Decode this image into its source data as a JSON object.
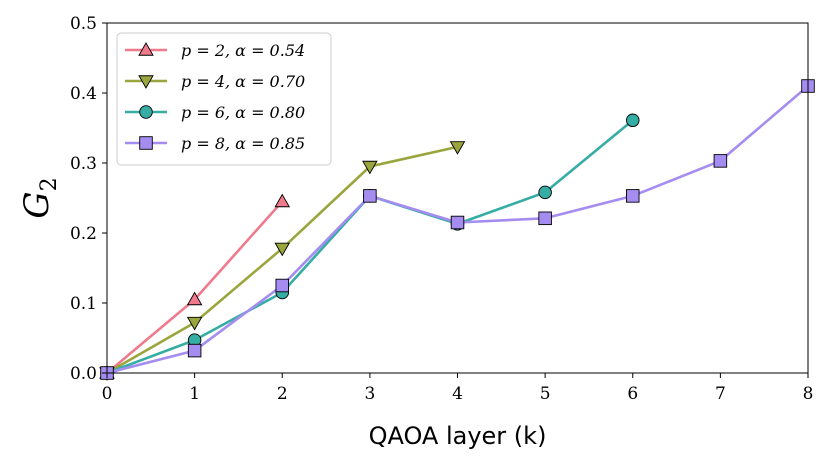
{
  "chart_data": {
    "type": "line",
    "title": "",
    "xlabel": "QAOA layer (k)",
    "ylabel": "G2",
    "xlim": [
      0,
      8
    ],
    "ylim": [
      0,
      0.5
    ],
    "xticks": [
      0,
      1,
      2,
      3,
      4,
      5,
      6,
      7,
      8
    ],
    "yticks": [
      0.0,
      0.1,
      0.2,
      0.3,
      0.4,
      0.5
    ],
    "xtick_labels": [
      "0",
      "1",
      "2",
      "3",
      "4",
      "5",
      "6",
      "7",
      "8"
    ],
    "ytick_labels": [
      "0.0",
      "0.1",
      "0.2",
      "0.3",
      "0.4",
      "0.5"
    ],
    "legend_position": "top-left",
    "grid": false,
    "series": [
      {
        "name": "p = 2, α = 0.54",
        "color": "#ee7a8c",
        "marker": "triangle-up",
        "x": [
          0,
          1,
          2
        ],
        "values": [
          0.0,
          0.105,
          0.245
        ]
      },
      {
        "name": "p = 4, α = 0.70",
        "color": "#9ba53e",
        "marker": "triangle-down",
        "x": [
          0,
          1,
          2,
          3,
          4
        ],
        "values": [
          0.0,
          0.072,
          0.178,
          0.295,
          0.323
        ]
      },
      {
        "name": "p = 6, α = 0.80",
        "color": "#36ada4",
        "marker": "circle",
        "x": [
          0,
          1,
          2,
          3,
          4,
          5,
          6
        ],
        "values": [
          0.0,
          0.047,
          0.115,
          0.253,
          0.213,
          0.258,
          0.361
        ]
      },
      {
        "name": "p = 8, α = 0.85",
        "color": "#a48cf0",
        "marker": "square",
        "x": [
          0,
          1,
          2,
          3,
          4,
          5,
          6,
          7,
          8
        ],
        "values": [
          0.0,
          0.032,
          0.125,
          0.253,
          0.215,
          0.221,
          0.253,
          0.303,
          0.41
        ]
      }
    ]
  }
}
